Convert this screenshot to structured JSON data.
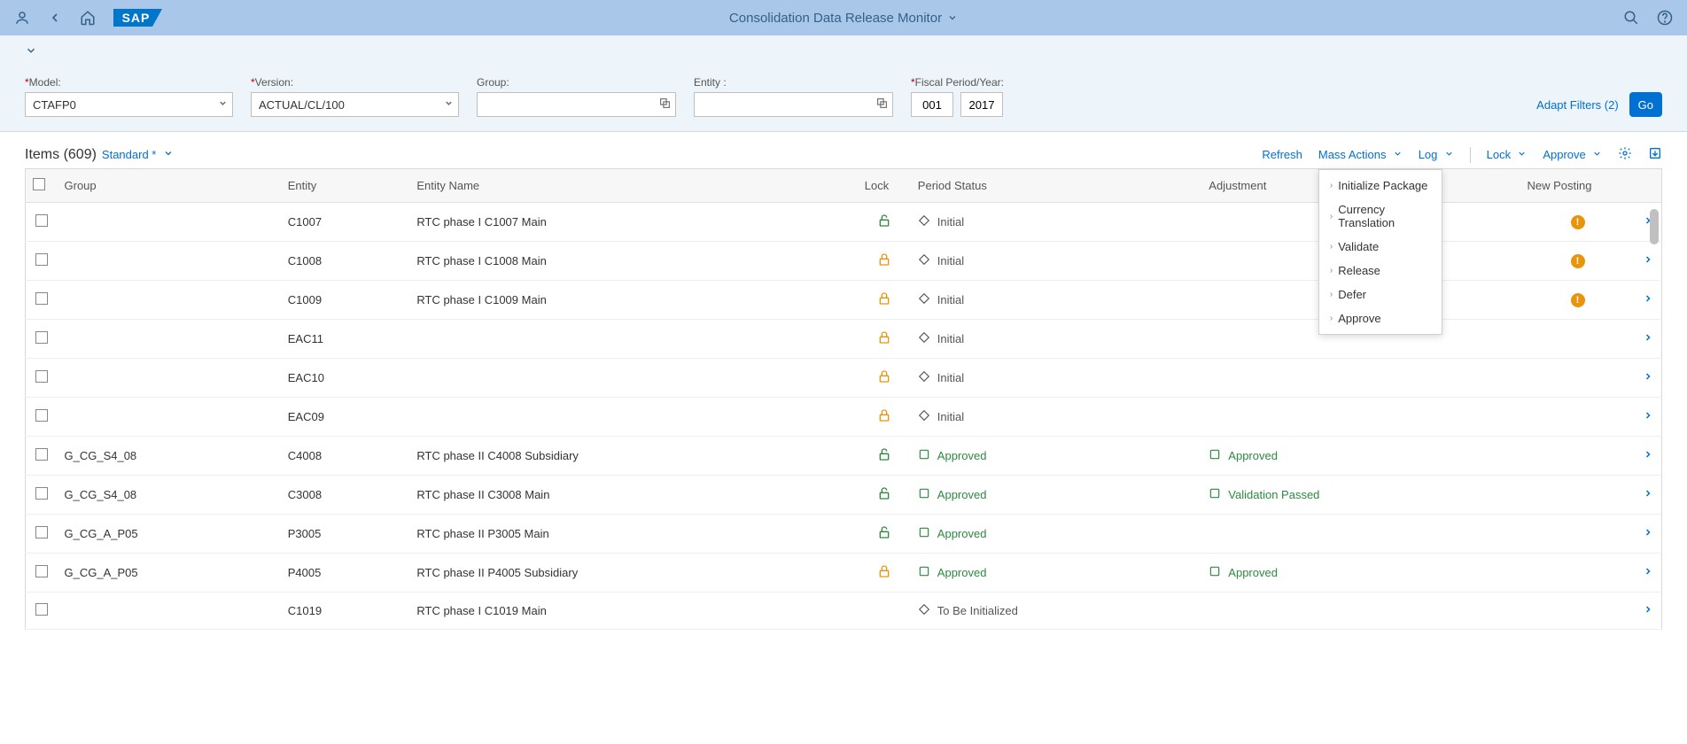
{
  "shell": {
    "title": "Consolidation Data Release Monitor"
  },
  "filters": {
    "model_label": "Model:",
    "model_value": "CTAFP0",
    "version_label": "Version:",
    "version_value": "ACTUAL/CL/100",
    "group_label": "Group:",
    "group_value": "",
    "entity_label": "Entity :",
    "entity_value": "",
    "fiscal_label": "Fiscal Period/Year:",
    "fiscal_period": "001",
    "fiscal_year": "2017",
    "adapt_filters": "Adapt Filters (2)",
    "go": "Go"
  },
  "table": {
    "title": "Items (609)",
    "variant": "Standard *",
    "toolbar": {
      "refresh": "Refresh",
      "mass_actions": "Mass Actions",
      "log": "Log",
      "lock": "Lock",
      "approve": "Approve"
    },
    "columns": {
      "group": "Group",
      "entity": "Entity",
      "entity_name": "Entity Name",
      "lock": "Lock",
      "period_status": "Period Status",
      "adjustment": "Adjustment",
      "new_posting": "New Posting"
    },
    "rows": [
      {
        "group": "",
        "entity": "C1007",
        "entity_name": "RTC phase I C1007 Main",
        "lock": "open",
        "period_status": "Initial",
        "period_status_type": "initial",
        "adjustment": "",
        "adjustment_type": "",
        "new_posting": true
      },
      {
        "group": "",
        "entity": "C1008",
        "entity_name": "RTC phase I C1008 Main",
        "lock": "closed",
        "period_status": "Initial",
        "period_status_type": "initial",
        "adjustment": "",
        "adjustment_type": "",
        "new_posting": true
      },
      {
        "group": "",
        "entity": "C1009",
        "entity_name": "RTC phase I C1009 Main",
        "lock": "closed",
        "period_status": "Initial",
        "period_status_type": "initial",
        "adjustment": "",
        "adjustment_type": "",
        "new_posting": true
      },
      {
        "group": "",
        "entity": "EAC11",
        "entity_name": "",
        "lock": "closed",
        "period_status": "Initial",
        "period_status_type": "initial",
        "adjustment": "",
        "adjustment_type": "",
        "new_posting": false
      },
      {
        "group": "",
        "entity": "EAC10",
        "entity_name": "",
        "lock": "closed",
        "period_status": "Initial",
        "period_status_type": "initial",
        "adjustment": "",
        "adjustment_type": "",
        "new_posting": false
      },
      {
        "group": "",
        "entity": "EAC09",
        "entity_name": "",
        "lock": "closed",
        "period_status": "Initial",
        "period_status_type": "initial",
        "adjustment": "",
        "adjustment_type": "",
        "new_posting": false
      },
      {
        "group": "G_CG_S4_08",
        "entity": "C4008",
        "entity_name": "RTC phase II C4008 Subsidiary",
        "lock": "open",
        "period_status": "Approved",
        "period_status_type": "approved",
        "adjustment": "Approved",
        "adjustment_type": "approved",
        "new_posting": false
      },
      {
        "group": "G_CG_S4_08",
        "entity": "C3008",
        "entity_name": "RTC phase II C3008 Main",
        "lock": "open",
        "period_status": "Approved",
        "period_status_type": "approved",
        "adjustment": "Validation Passed",
        "adjustment_type": "validation",
        "new_posting": false
      },
      {
        "group": "G_CG_A_P05",
        "entity": "P3005",
        "entity_name": "RTC phase II P3005 Main",
        "lock": "open",
        "period_status": "Approved",
        "period_status_type": "approved",
        "adjustment": "",
        "adjustment_type": "",
        "new_posting": false
      },
      {
        "group": "G_CG_A_P05",
        "entity": "P4005",
        "entity_name": "RTC phase II P4005 Subsidiary",
        "lock": "closed",
        "period_status": "Approved",
        "period_status_type": "approved",
        "adjustment": "Approved",
        "adjustment_type": "approved",
        "new_posting": false
      },
      {
        "group": "",
        "entity": "C1019",
        "entity_name": "RTC phase I C1019 Main",
        "lock": "none",
        "period_status": "To Be Initialized",
        "period_status_type": "tobeinitialized",
        "adjustment": "",
        "adjustment_type": "",
        "new_posting": false
      }
    ]
  },
  "mass_actions_menu": [
    "Initialize Package",
    "Currency Translation",
    "Validate",
    "Release",
    "Defer",
    "Approve"
  ],
  "colors": {
    "shell_bg": "#a9c7e8",
    "filter_bg": "#edf4fa",
    "link": "#0070d2",
    "primary_btn": "#0070d2",
    "lock_open": "#2b8a3e",
    "lock_closed": "#e8950c",
    "status_green": "#2b8a3e",
    "warn": "#e8950c"
  }
}
